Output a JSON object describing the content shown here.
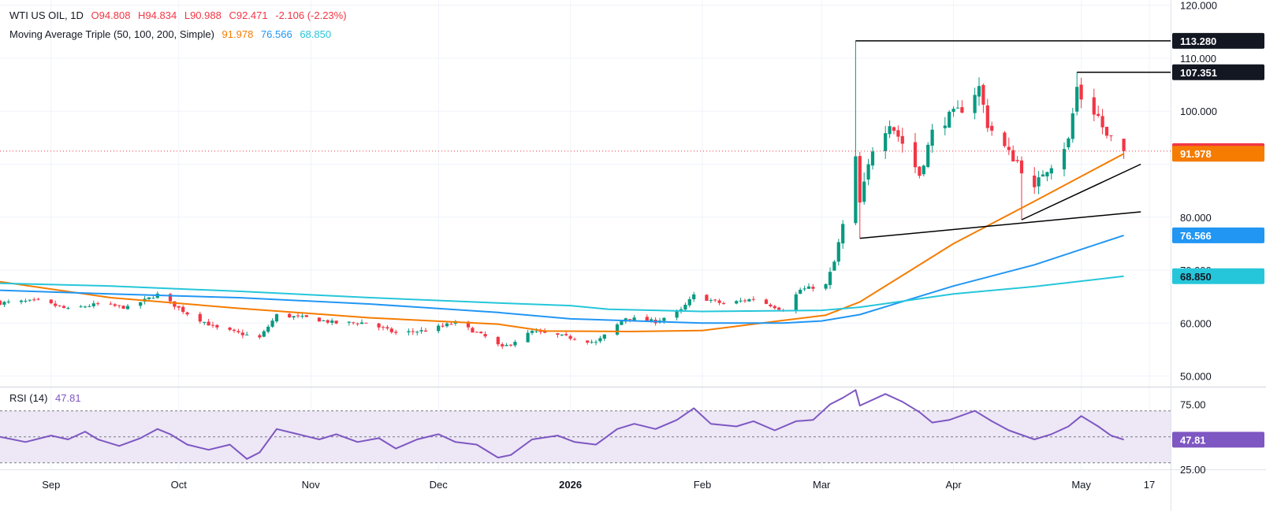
{
  "header": {
    "symbol": "WTI US OIL, 1D",
    "o_label": "O",
    "open": "94.808",
    "h_label": "H",
    "high": "94.834",
    "l_label": "L",
    "low": "90.988",
    "c_label": "C",
    "close": "92.471",
    "change": "-2.106 (-2.23%)",
    "ma_label": "Moving Average Triple (50, 100, 200, Simple)",
    "ma50": "91.978",
    "ma100": "76.566",
    "ma200": "68.850"
  },
  "rsi_header": {
    "label": "RSI (14)",
    "value": "47.81"
  },
  "colors": {
    "up": "#089981",
    "down": "#f23645",
    "ma50": "#f57c00",
    "ma100": "#2196f3",
    "ma200": "#26c6da",
    "rsi": "#7e57c2",
    "rsi_band": "#ede7f6",
    "trend": "#000000",
    "price_line": "#f23645"
  },
  "chart_data": [
    {
      "type": "candlestick",
      "title": "WTI US OIL, 1D",
      "ylim": [
        48,
        121
      ],
      "price_ticks": [
        "120.000",
        "110.000",
        "100.000",
        "80.000",
        "70.000",
        "60.000",
        "50.000"
      ],
      "time_labels": [
        {
          "label": "Sep",
          "date": "2025-09-01"
        },
        {
          "label": "Oct",
          "date": "2025-10-01"
        },
        {
          "label": "Nov",
          "date": "2025-11-01"
        },
        {
          "label": "Dec",
          "date": "2025-12-01"
        },
        {
          "label": "2026",
          "date": "2026-01-01"
        },
        {
          "label": "Feb",
          "date": "2026-02-01"
        },
        {
          "label": "Mar",
          "date": "2026-03-01"
        },
        {
          "label": "Apr",
          "date": "2026-04-01"
        },
        {
          "label": "May",
          "date": "2026-05-01"
        },
        {
          "label": "17",
          "date": "2026-05-17"
        }
      ],
      "x_range": [
        "2025-08-20",
        "2026-05-22"
      ],
      "close_anchors": [
        [
          "2025-08-20",
          63.8
        ],
        [
          "2025-08-29",
          64.2
        ],
        [
          "2025-09-05",
          62.6
        ],
        [
          "2025-09-12",
          63.6
        ],
        [
          "2025-09-19",
          62.9
        ],
        [
          "2025-09-26",
          65.4
        ],
        [
          "2025-10-03",
          61.8
        ],
        [
          "2025-10-10",
          59.0
        ],
        [
          "2025-10-20",
          57.2
        ],
        [
          "2025-10-24",
          61.5
        ],
        [
          "2025-10-31",
          61.0
        ],
        [
          "2025-11-07",
          60.0
        ],
        [
          "2025-11-14",
          60.1
        ],
        [
          "2025-11-21",
          58.1
        ],
        [
          "2025-11-28",
          58.6
        ],
        [
          "2025-12-05",
          60.1
        ],
        [
          "2025-12-12",
          57.4
        ],
        [
          "2025-12-16",
          55.3
        ],
        [
          "2025-12-23",
          58.4
        ],
        [
          "2025-12-31",
          57.4
        ],
        [
          "2026-01-07",
          56.3
        ],
        [
          "2026-01-14",
          61.0
        ],
        [
          "2026-01-21",
          60.3
        ],
        [
          "2026-01-27",
          62.4
        ],
        [
          "2026-01-30",
          65.2
        ],
        [
          "2026-02-06",
          63.6
        ],
        [
          "2026-02-13",
          64.6
        ],
        [
          "2026-02-20",
          62.5
        ],
        [
          "2026-02-24",
          66.3
        ],
        [
          "2026-03-02",
          67.2
        ],
        [
          "2026-03-04",
          71.5
        ],
        [
          "2026-03-06",
          78.5
        ],
        [
          "2026-03-09",
          90.8
        ],
        [
          "2026-03-10",
          82.5
        ],
        [
          "2026-03-13",
          93.0
        ],
        [
          "2026-03-17",
          98.0
        ],
        [
          "2026-03-20",
          94.0
        ],
        [
          "2026-03-24",
          88.0
        ],
        [
          "2026-03-27",
          96.0
        ],
        [
          "2026-03-31",
          99.0
        ],
        [
          "2026-04-03",
          100.5
        ],
        [
          "2026-04-07",
          104.5
        ],
        [
          "2026-04-09",
          97.5
        ],
        [
          "2026-04-14",
          92.0
        ],
        [
          "2026-04-16",
          90.5
        ],
        [
          "2026-04-20",
          85.0
        ],
        [
          "2026-04-22",
          88.5
        ],
        [
          "2026-04-24",
          90.0
        ],
        [
          "2026-04-28",
          94.5
        ],
        [
          "2026-04-30",
          104.5
        ],
        [
          "2026-05-01",
          102.5
        ],
        [
          "2026-05-05",
          99.0
        ],
        [
          "2026-05-07",
          95.0
        ],
        [
          "2026-05-08",
          94.8
        ],
        [
          "2026-05-11",
          92.471
        ]
      ],
      "last_candle": {
        "date": "2026-05-11",
        "open": 94.808,
        "high": 94.834,
        "low": 90.988,
        "close": 92.471
      },
      "notable_highs": [
        {
          "date": "2026-03-09",
          "value": 113.28
        },
        {
          "date": "2026-04-30",
          "value": 107.351
        }
      ],
      "notable_lows": [
        {
          "date": "2026-03-10",
          "value": 76.0
        },
        {
          "date": "2026-04-17",
          "value": 79.5
        }
      ],
      "ma_series": [
        {
          "name": "SMA 50",
          "color": "#f57c00",
          "points": [
            [
              "2025-08-20",
              67.8
            ],
            [
              "2025-09-15",
              64.8
            ],
            [
              "2025-10-15",
              62.8
            ],
            [
              "2025-11-15",
              61.0
            ],
            [
              "2025-12-15",
              59.8
            ],
            [
              "2025-12-26",
              58.5
            ],
            [
              "2026-01-15",
              58.4
            ],
            [
              "2026-02-01",
              58.6
            ],
            [
              "2026-02-20",
              60.5
            ],
            [
              "2026-03-02",
              61.5
            ],
            [
              "2026-03-10",
              64.0
            ],
            [
              "2026-04-01",
              75.0
            ],
            [
              "2026-04-20",
              83.0
            ],
            [
              "2026-05-11",
              91.978
            ]
          ]
        },
        {
          "name": "SMA 100",
          "color": "#2196f3",
          "points": [
            [
              "2025-08-20",
              66.2
            ],
            [
              "2025-09-15",
              65.5
            ],
            [
              "2025-10-15",
              64.8
            ],
            [
              "2025-11-15",
              63.6
            ],
            [
              "2025-12-15",
              62.0
            ],
            [
              "2026-01-01",
              60.8
            ],
            [
              "2026-02-01",
              60.0
            ],
            [
              "2026-02-20",
              60.0
            ],
            [
              "2026-03-01",
              60.4
            ],
            [
              "2026-03-10",
              61.6
            ],
            [
              "2026-04-01",
              67.0
            ],
            [
              "2026-04-20",
              71.0
            ],
            [
              "2026-05-11",
              76.566
            ]
          ]
        },
        {
          "name": "SMA 200",
          "color": "#26c6da",
          "points": [
            [
              "2025-08-20",
              67.5
            ],
            [
              "2025-09-15",
              67.0
            ],
            [
              "2025-10-15",
              66.0
            ],
            [
              "2025-11-15",
              64.8
            ],
            [
              "2025-12-15",
              63.8
            ],
            [
              "2026-01-01",
              63.3
            ],
            [
              "2026-01-10",
              62.6
            ],
            [
              "2026-02-01",
              62.2
            ],
            [
              "2026-03-01",
              62.4
            ],
            [
              "2026-03-10",
              63.0
            ],
            [
              "2026-04-01",
              65.5
            ],
            [
              "2026-04-20",
              66.9
            ],
            [
              "2026-05-11",
              68.85
            ]
          ]
        }
      ],
      "horizontal_lines": [
        {
          "value": 113.28,
          "from": "2026-03-09",
          "label": "113.280"
        },
        {
          "value": 107.351,
          "from": "2026-04-30",
          "label": "107.351"
        }
      ],
      "trend_lines": [
        {
          "from": [
            "2026-03-10",
            76.0
          ],
          "to": [
            "2026-05-15",
            81.0
          ]
        },
        {
          "from": [
            "2026-04-17",
            79.5
          ],
          "to": [
            "2026-05-15",
            90.0
          ]
        }
      ],
      "price_labels": [
        {
          "value": 113.28,
          "text": "113.280",
          "style": "dark"
        },
        {
          "value": 107.351,
          "text": "107.351",
          "style": "dark"
        },
        {
          "value": 92.471,
          "text": "92.471",
          "style": "red"
        },
        {
          "value": 91.978,
          "text": "91.978",
          "style": "orange"
        },
        {
          "value": 76.566,
          "text": "76.566",
          "style": "blue"
        },
        {
          "value": 68.85,
          "text": "68.850",
          "style": "cyan"
        }
      ]
    },
    {
      "type": "line",
      "title": "RSI (14)",
      "ylim": [
        25,
        88
      ],
      "band": [
        30,
        70
      ],
      "mid": 50,
      "ticks": [
        "75.00",
        "25.00"
      ],
      "last_value": 47.81,
      "points": [
        [
          "2025-08-20",
          50
        ],
        [
          "2025-08-26",
          46
        ],
        [
          "2025-09-01",
          51
        ],
        [
          "2025-09-05",
          48
        ],
        [
          "2025-09-09",
          54
        ],
        [
          "2025-09-12",
          48
        ],
        [
          "2025-09-17",
          43
        ],
        [
          "2025-09-22",
          49
        ],
        [
          "2025-09-26",
          56
        ],
        [
          "2025-09-29",
          52
        ],
        [
          "2025-10-03",
          44
        ],
        [
          "2025-10-08",
          40
        ],
        [
          "2025-10-13",
          44
        ],
        [
          "2025-10-17",
          33
        ],
        [
          "2025-10-20",
          38
        ],
        [
          "2025-10-24",
          56
        ],
        [
          "2025-10-29",
          52
        ],
        [
          "2025-11-03",
          48
        ],
        [
          "2025-11-07",
          52
        ],
        [
          "2025-11-12",
          46
        ],
        [
          "2025-11-17",
          49
        ],
        [
          "2025-11-21",
          41
        ],
        [
          "2025-11-26",
          48
        ],
        [
          "2025-12-01",
          52
        ],
        [
          "2025-12-05",
          46
        ],
        [
          "2025-12-10",
          44
        ],
        [
          "2025-12-15",
          34
        ],
        [
          "2025-12-18",
          36
        ],
        [
          "2025-12-23",
          48
        ],
        [
          "2025-12-29",
          51
        ],
        [
          "2026-01-02",
          46
        ],
        [
          "2026-01-07",
          44
        ],
        [
          "2026-01-12",
          56
        ],
        [
          "2026-01-16",
          60
        ],
        [
          "2026-01-21",
          56
        ],
        [
          "2026-01-26",
          63
        ],
        [
          "2026-01-30",
          72
        ],
        [
          "2026-02-03",
          60
        ],
        [
          "2026-02-09",
          58
        ],
        [
          "2026-02-13",
          62
        ],
        [
          "2026-02-18",
          55
        ],
        [
          "2026-02-23",
          62
        ],
        [
          "2026-02-27",
          63
        ],
        [
          "2026-03-03",
          75
        ],
        [
          "2026-03-06",
          80
        ],
        [
          "2026-03-09",
          86
        ],
        [
          "2026-03-10",
          74
        ],
        [
          "2026-03-16",
          83
        ],
        [
          "2026-03-20",
          77
        ],
        [
          "2026-03-24",
          69
        ],
        [
          "2026-03-27",
          61
        ],
        [
          "2026-03-31",
          63
        ],
        [
          "2026-04-06",
          70
        ],
        [
          "2026-04-10",
          62
        ],
        [
          "2026-04-14",
          55
        ],
        [
          "2026-04-20",
          48
        ],
        [
          "2026-04-24",
          52
        ],
        [
          "2026-04-28",
          58
        ],
        [
          "2026-05-01",
          66
        ],
        [
          "2026-05-05",
          58
        ],
        [
          "2026-05-08",
          51
        ],
        [
          "2026-05-11",
          47.81
        ]
      ]
    }
  ]
}
